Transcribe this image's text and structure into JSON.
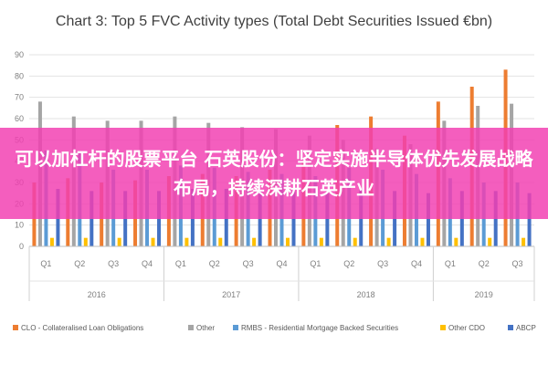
{
  "chart_data": {
    "type": "bar",
    "title": "Chart 3: Top 5 FVC Activity types (Total Debt Securities Issued €bn)",
    "ylim": [
      0,
      90
    ],
    "yticks": [
      "0",
      "10",
      "20",
      "30",
      "40",
      "50",
      "60",
      "70",
      "80",
      "90"
    ],
    "grid": true,
    "legend_position": "bottom",
    "categories": [
      "Q1",
      "Q2",
      "Q3",
      "Q4",
      "Q1",
      "Q2",
      "Q3",
      "Q4",
      "Q1",
      "Q2",
      "Q3",
      "Q4",
      "Q1",
      "Q2",
      "Q3"
    ],
    "years": [
      {
        "label": "2016",
        "quarters": 4
      },
      {
        "label": "2017",
        "quarters": 4
      },
      {
        "label": "2018",
        "quarters": 4
      },
      {
        "label": "2019",
        "quarters": 3
      }
    ],
    "series": [
      {
        "name": "CLO - Collateralised Loan Obligations",
        "color": "#ed7d31",
        "values": [
          30,
          32,
          30,
          31,
          33,
          34,
          33,
          36,
          40,
          57,
          61,
          52,
          68,
          75,
          83
        ]
      },
      {
        "name": "Other",
        "color": "#a5a5a5",
        "values": [
          68,
          61,
          59,
          59,
          61,
          58,
          56,
          55,
          52,
          50,
          46,
          48,
          59,
          66,
          67
        ]
      },
      {
        "name": "RMBS - Residential Mortgage Backed Securities",
        "color": "#5b9bd5",
        "values": [
          45,
          44,
          36,
          36,
          38,
          37,
          35,
          34,
          33,
          37,
          36,
          34,
          32,
          30,
          30
        ]
      },
      {
        "name": "Other CDO",
        "color": "#ffc000",
        "values": [
          4,
          4,
          4,
          4,
          4,
          4,
          4,
          4,
          4,
          4,
          4,
          4,
          4,
          4,
          4
        ]
      },
      {
        "name": "ABCP",
        "color": "#4472c4",
        "values": [
          27,
          26,
          26,
          26,
          27,
          27,
          26,
          26,
          25,
          27,
          26,
          25,
          26,
          26,
          25
        ]
      }
    ]
  },
  "overlay": {
    "text": "可以加杠杆的股票平台 石英股份：坚定实施半导体优先发展战略布局，持续深耕石英产业"
  }
}
